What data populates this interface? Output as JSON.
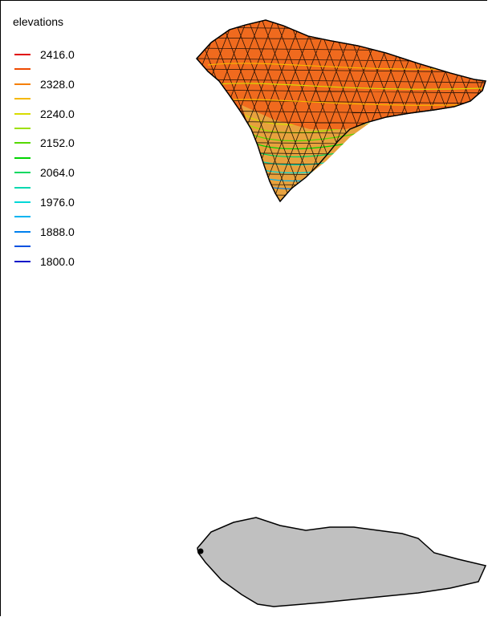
{
  "legend": {
    "title": "elevations",
    "entries": [
      {
        "label": "2416.0",
        "color": "#e00000"
      },
      {
        "label": "",
        "color": "#ee4a00"
      },
      {
        "label": "2328.0",
        "color": "#f57f00"
      },
      {
        "label": "",
        "color": "#f5b800"
      },
      {
        "label": "2240.0",
        "color": "#d8dc00"
      },
      {
        "label": "",
        "color": "#9ee000"
      },
      {
        "label": "2152.0",
        "color": "#55d800"
      },
      {
        "label": "",
        "color": "#00d400"
      },
      {
        "label": "2064.0",
        "color": "#00d860"
      },
      {
        "label": "",
        "color": "#00d8b0"
      },
      {
        "label": "1976.0",
        "color": "#00d8d8"
      },
      {
        "label": "",
        "color": "#00b4f0"
      },
      {
        "label": "1888.0",
        "color": "#0080ee"
      },
      {
        "label": "",
        "color": "#0050e0"
      },
      {
        "label": "1800.0",
        "color": "#0014c8"
      }
    ]
  },
  "colors": {
    "surface_fill": "#f06a1e",
    "mesh_stroke": "#000000",
    "valley_fill": "#e59a3a",
    "footprint_fill": "#c0c0c0",
    "footprint_stroke": "#000000"
  }
}
